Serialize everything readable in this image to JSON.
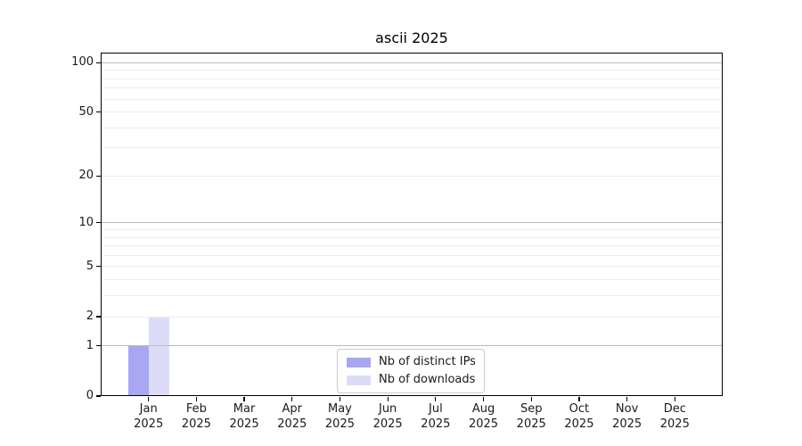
{
  "title": "ascii 2025",
  "chart_data": {
    "type": "bar",
    "title": "ascii 2025",
    "xlabel": "",
    "ylabel": "",
    "categories": [
      "Jan 2025",
      "Feb 2025",
      "Mar 2025",
      "Apr 2025",
      "May 2025",
      "Jun 2025",
      "Jul 2025",
      "Aug 2025",
      "Sep 2025",
      "Oct 2025",
      "Nov 2025",
      "Dec 2025"
    ],
    "category_labels": [
      {
        "month": "Jan",
        "year": "2025"
      },
      {
        "month": "Feb",
        "year": "2025"
      },
      {
        "month": "Mar",
        "year": "2025"
      },
      {
        "month": "Apr",
        "year": "2025"
      },
      {
        "month": "May",
        "year": "2025"
      },
      {
        "month": "Jun",
        "year": "2025"
      },
      {
        "month": "Jul",
        "year": "2025"
      },
      {
        "month": "Aug",
        "year": "2025"
      },
      {
        "month": "Sep",
        "year": "2025"
      },
      {
        "month": "Oct",
        "year": "2025"
      },
      {
        "month": "Nov",
        "year": "2025"
      },
      {
        "month": "Dec",
        "year": "2025"
      }
    ],
    "series": [
      {
        "name": "Nb of distinct IPs",
        "color": "#a7a7f4",
        "values": [
          1,
          0,
          0,
          0,
          0,
          0,
          0,
          0,
          0,
          0,
          0,
          0
        ]
      },
      {
        "name": "Nb of downloads",
        "color": "#dcdcf9",
        "values": [
          2,
          0,
          0,
          0,
          0,
          0,
          0,
          0,
          0,
          0,
          0,
          0
        ]
      }
    ],
    "yscale": "log1p",
    "ylim": [
      0,
      115
    ],
    "yticks": [
      0,
      1,
      2,
      5,
      10,
      20,
      50,
      100
    ],
    "major_gridlines": [
      1,
      10,
      100
    ],
    "minor_gridlines": [
      2,
      3,
      4,
      5,
      6,
      7,
      8,
      9,
      20,
      30,
      40,
      50,
      60,
      70,
      80,
      90
    ],
    "grid": true,
    "legend_position": "lower center"
  },
  "legend": {
    "entries": [
      {
        "label": "Nb of distinct IPs",
        "color": "#a7a7f4"
      },
      {
        "label": "Nb of downloads",
        "color": "#dcdcf9"
      }
    ]
  },
  "colors": {
    "axis": "#000000",
    "major_grid": "#bbbbbb",
    "minor_grid": "#ededed",
    "text": "#1a1a1a",
    "background": "#ffffff"
  }
}
